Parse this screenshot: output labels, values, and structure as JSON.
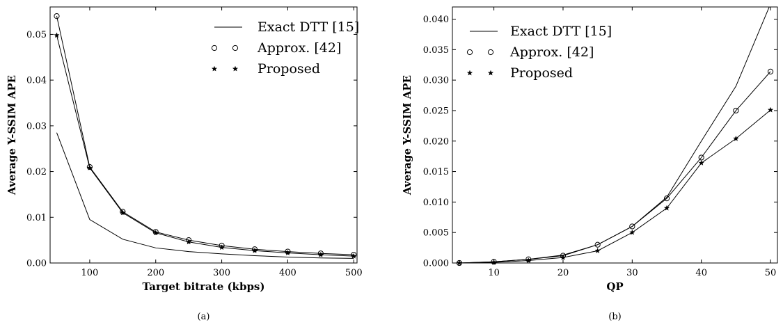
{
  "chart_data": [
    {
      "type": "line",
      "caption": "(a)",
      "xlabel": "Target bitrate (kbps)",
      "ylabel": "Average Y-SSIM APE",
      "xlim": [
        40,
        505
      ],
      "ylim": [
        0,
        0.056
      ],
      "xticks": [
        100,
        200,
        300,
        400,
        500
      ],
      "xtick_labels": [
        "100",
        "200",
        "300",
        "400",
        "500"
      ],
      "yticks": [
        0,
        0.01,
        0.02,
        0.03,
        0.04,
        0.05
      ],
      "ytick_labels": [
        "0.00",
        "0.01",
        "0.02",
        "0.03",
        "0.04",
        "0.05"
      ],
      "grid": false,
      "legend_position": "top-right",
      "x": [
        50,
        100,
        150,
        200,
        250,
        300,
        350,
        400,
        450,
        500
      ],
      "series": [
        {
          "name": "Exact DTT [15]",
          "marker": "line",
          "values": [
            0.0285,
            0.0095,
            0.0052,
            0.0033,
            0.0025,
            0.002,
            0.0016,
            0.0013,
            0.0011,
            0.001
          ]
        },
        {
          "name": "Approx. [42]",
          "marker": "circle",
          "values": [
            0.054,
            0.021,
            0.0112,
            0.0068,
            0.005,
            0.0038,
            0.003,
            0.0025,
            0.0021,
            0.0018
          ]
        },
        {
          "name": "Proposed",
          "marker": "star",
          "values": [
            0.0498,
            0.0208,
            0.011,
            0.0066,
            0.0046,
            0.0034,
            0.0027,
            0.0022,
            0.0018,
            0.0015
          ]
        }
      ]
    },
    {
      "type": "line",
      "caption": "(b)",
      "xlabel": "QP",
      "ylabel": "Average Y-SSIM APE",
      "xlim": [
        4,
        51
      ],
      "ylim": [
        0,
        0.042
      ],
      "xticks": [
        10,
        20,
        30,
        40,
        50
      ],
      "xtick_labels": [
        "10",
        "20",
        "30",
        "40",
        "50"
      ],
      "yticks": [
        0,
        0.005,
        0.01,
        0.015,
        0.02,
        0.025,
        0.03,
        0.035,
        0.04
      ],
      "ytick_labels": [
        "0.000",
        "0.005",
        "0.010",
        "0.015",
        "0.020",
        "0.025",
        "0.030",
        "0.035",
        "0.040"
      ],
      "grid": false,
      "legend_position": "top-left",
      "x": [
        5,
        10,
        15,
        20,
        25,
        30,
        35,
        40,
        45,
        50
      ],
      "series": [
        {
          "name": "Exact DTT [15]",
          "marker": "line",
          "values": [
            0.0,
            0.0002,
            0.0006,
            0.0013,
            0.003,
            0.006,
            0.0108,
            0.02,
            0.029,
            0.0425
          ]
        },
        {
          "name": "Approx. [42]",
          "marker": "circle",
          "values": [
            0.0,
            0.0002,
            0.0006,
            0.0012,
            0.003,
            0.006,
            0.0106,
            0.0173,
            0.025,
            0.0314
          ]
        },
        {
          "name": "Proposed",
          "marker": "star",
          "values": [
            0.0,
            0.0001,
            0.0004,
            0.0009,
            0.002,
            0.005,
            0.009,
            0.0164,
            0.0204,
            0.0251
          ]
        }
      ]
    }
  ]
}
